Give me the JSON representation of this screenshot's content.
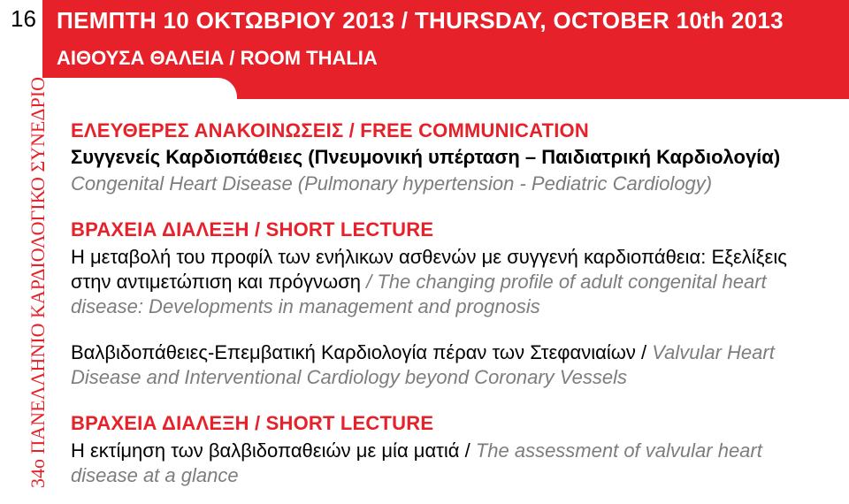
{
  "page_number": "16",
  "header": {
    "date_line": "ΠΕΜΠΤΗ 10 ΟΚΤΩΒΡΙΟΥ 2013 / THURSDAY, OCTOBER 10th 2013",
    "room_line": "ΑΙΘΟΥΣΑ ΘΑΛΕΙΑ / ROOM THALIA"
  },
  "sidebar_text": "34ο ΠΑΝΕΛΛΗΝΙΟ ΚΑΡΔΙΟΛΟΓΙΚΟ ΣΥΝΕΔΡΙΟ",
  "block1": {
    "title": "ΕΛΕΥΘΕΡΕΣ ΑΝΑΚΟΙΝΩΣΕΙΣ / FREE COMMUNICATION",
    "subtitle_gr": "Συγγενείς Καρδιοπάθειες (Πνευμονική υπέρταση – Παιδιατρική Καρδιολογία)",
    "subtitle_en": "Congenital Heart Disease (Pulmonary hypertension - Pediatric Cardiology)"
  },
  "block2": {
    "title": "ΒΡΑΧΕΙΑ ΔΙΑΛΕΞΗ / SHORT LECTURE",
    "gr1": "Η μεταβολή του προφίλ των ενήλικων ασθενών με συγγενή καρδιοπάθεια: Εξελίξεις στην αντιμετώπιση και πρόγνωση",
    "en1": " / The changing profile of adult congenital heart disease: Developments in management and prognosis"
  },
  "block3": {
    "gr": "Βαλβιδοπάθειες-Επεμβατική Καρδιολογία πέραν των Στεφανιαίων / ",
    "en": "Valvular Heart Disease and Interventional Cardiology beyond Coronary Vessels"
  },
  "block4": {
    "title": "ΒΡΑΧΕΙΑ ΔΙΑΛΕΞΗ / SHORT LECTURE",
    "gr": "Η εκτίμηση των βαλβιδοπαθειών με μία ματιά / ",
    "en": "The assessment of valvular heart disease at a glance"
  },
  "colors": {
    "red": "#e62129",
    "gray": "#7d7d7d",
    "text": "#000000",
    "bg": "#ffffff"
  },
  "fonts": {
    "header_size": 26,
    "body_size": 22,
    "vertical_size": 22
  }
}
